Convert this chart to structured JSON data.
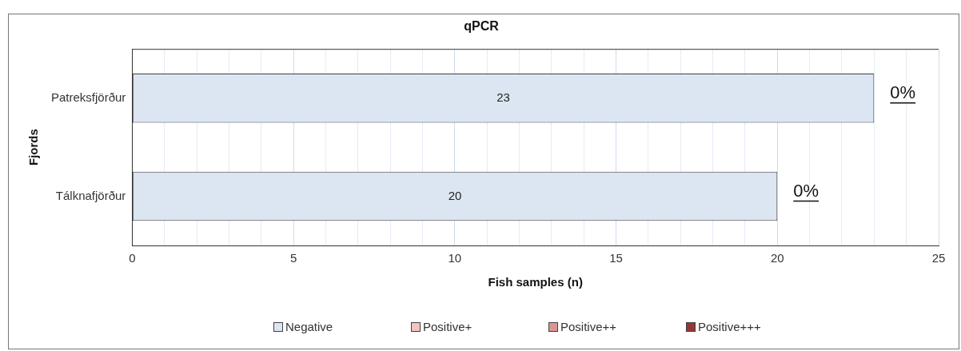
{
  "chart_data": {
    "type": "bar",
    "orientation": "horizontal",
    "stacked": true,
    "title": "qPCR",
    "xlabel": "Fish samples (n)",
    "ylabel": "Fjords",
    "categories": [
      "Patreksfjörður",
      "Tálknafjörður"
    ],
    "series": [
      {
        "name": "Negative",
        "color": "#dce6f2",
        "values": [
          23,
          20
        ],
        "value_labels": [
          "23",
          "20"
        ]
      },
      {
        "name": "Positive+",
        "color": "#f2c4c4",
        "values": [
          0,
          0
        ]
      },
      {
        "name": "Positive++",
        "color": "#d99594",
        "values": [
          0,
          0
        ]
      },
      {
        "name": "Positive+++",
        "color": "#953735",
        "values": [
          0,
          0
        ]
      }
    ],
    "xlim": [
      0,
      25
    ],
    "xticks": [
      0,
      {
        "value": 1,
        "label": null
      },
      {
        "value": 2,
        "label": null
      },
      {
        "value": 3,
        "label": null
      },
      {
        "value": 4,
        "label": null
      },
      5,
      {
        "value": 6,
        "label": null
      },
      {
        "value": 7,
        "label": null
      },
      {
        "value": 8,
        "label": null
      },
      {
        "value": 9,
        "label": null
      },
      10,
      {
        "value": 11,
        "label": null
      },
      {
        "value": 12,
        "label": null
      },
      {
        "value": 13,
        "label": null
      },
      {
        "value": 14,
        "label": null
      },
      15,
      {
        "value": 16,
        "label": null
      },
      {
        "value": 17,
        "label": null
      },
      {
        "value": 18,
        "label": null
      },
      {
        "value": 19,
        "label": null
      },
      20,
      {
        "value": 21,
        "label": null
      },
      {
        "value": 22,
        "label": null
      },
      {
        "value": 23,
        "label": null
      },
      {
        "value": 24,
        "label": null
      },
      25
    ],
    "annotations": [
      {
        "text": "0%",
        "x": 23,
        "y": "Patreksfjörður"
      },
      {
        "text": "0%",
        "x": 20,
        "y": "Tálknafjörður"
      }
    ],
    "grid": "x",
    "legend": "bottom"
  }
}
